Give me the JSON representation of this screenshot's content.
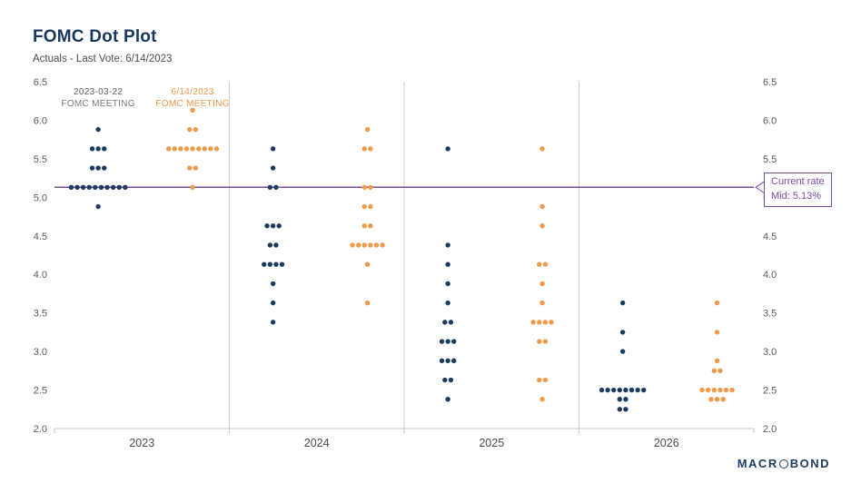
{
  "header": {
    "title": "FOMC Dot Plot",
    "subtitle": "Actuals - Last Vote: 6/14/2023"
  },
  "chart_data": {
    "type": "scatter",
    "title": "FOMC Dot Plot",
    "subtitle": "Actuals - Last Vote: 6/14/2023",
    "ylim": [
      2.0,
      6.5
    ],
    "ytick_step": 0.5,
    "ytick_sides": "both",
    "grid": "vertical section dividers only",
    "legend_position": "top-inside-first-section",
    "categories": [
      "2023",
      "2024",
      "2025",
      "2026"
    ],
    "series": [
      {
        "name": "2023-03-22 FOMC MEETING",
        "legend_line1": "2023-03-22",
        "legend_line2": "FOMC MEETING",
        "legend_text_colors": [
          "#5f5f5f",
          "#7a7a7a"
        ],
        "color": "#1d3a5f",
        "x_frac": 0.25,
        "points": {
          "2023": {
            "5.88": 1,
            "5.63": 3,
            "5.38": 3,
            "5.13": 10,
            "4.88": 1
          },
          "2024": {
            "5.63": 1,
            "5.38": 1,
            "5.13": 2,
            "4.63": 3,
            "4.38": 2,
            "4.13": 4,
            "3.88": 1,
            "3.63": 1,
            "3.38": 1
          },
          "2025": {
            "5.63": 1,
            "4.38": 1,
            "4.13": 1,
            "3.88": 1,
            "3.63": 1,
            "3.38": 2,
            "3.13": 3,
            "2.88": 3,
            "2.63": 2,
            "2.38": 1
          },
          "2026": {
            "3.63": 1,
            "3.25": 1,
            "3.0": 1,
            "2.5": 8,
            "2.38": 2,
            "2.25": 2
          }
        }
      },
      {
        "name": "6/14/2023 FOMC MEETING",
        "legend_line1": "6/14/2023",
        "legend_line2": "FOMC MEETING",
        "legend_text_colors": [
          "#f2994a",
          "#f2994a"
        ],
        "color": "#f2994a",
        "x_frac": 0.79,
        "points": {
          "2023": {
            "6.13": 1,
            "5.88": 2,
            "5.63": 9,
            "5.38": 2,
            "5.13": 1
          },
          "2024": {
            "5.88": 1,
            "5.63": 2,
            "5.13": 2,
            "4.88": 2,
            "4.63": 2,
            "4.38": 6,
            "4.13": 1,
            "3.63": 1
          },
          "2025": {
            "5.63": 1,
            "4.88": 1,
            "4.63": 1,
            "4.13": 2,
            "3.88": 1,
            "3.63": 1,
            "3.38": 4,
            "3.13": 2,
            "2.63": 2,
            "2.38": 1
          },
          "2026": {
            "3.63": 1,
            "3.25": 1,
            "2.88": 1,
            "2.75": 2,
            "2.5": 6,
            "2.38": 3
          }
        }
      }
    ],
    "current_rate_line": {
      "value": 5.13,
      "color": "#7d4b9f",
      "label_line1": "Current rate",
      "label_line2": "Mid: 5.13%"
    }
  },
  "footer": {
    "logo_name": "MACROBOND",
    "logo_left": "MACR",
    "logo_right": "BOND"
  }
}
